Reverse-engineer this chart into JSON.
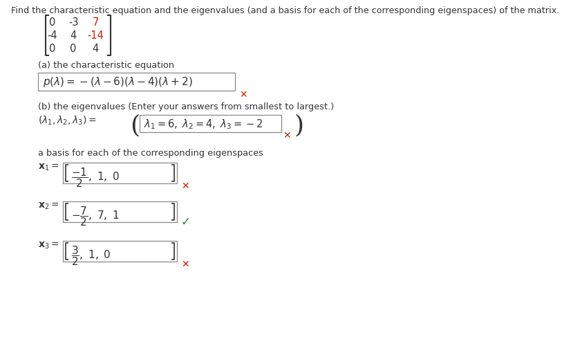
{
  "title": "Find the characteristic equation and the eigenvalues (and a basis for each of the corresponding eigenspaces) of the matrix.",
  "matrix": [
    [
      "0",
      "-3",
      "7"
    ],
    [
      "-4",
      "4",
      "-14"
    ],
    [
      "0",
      "0",
      "4"
    ]
  ],
  "matrix_red_cells": [
    [
      0,
      2
    ],
    [
      1,
      2
    ]
  ],
  "part_a_label": "(a) the characteristic equation",
  "char_eq": "p(λ) = −(λ − 6)(λ − 4)(λ + 2)",
  "part_b_label": "(b) the eigenvalues (Enter your answers from smallest to largest.)",
  "eigenval_lhs": "(λ₁, λ₂, λ₃) =",
  "eigenval_rhs": "λ₁ = 6, λ₂ = 4, λ₃ = −2",
  "eigen_basis_label": "a basis for each of the corresponding eigenspaces",
  "cross_color": "#cc2200",
  "check_color": "#337733",
  "text_color": "#333333",
  "red_color": "#cc2200",
  "box_edge_color": "#888888",
  "bg_color": "#ffffff"
}
